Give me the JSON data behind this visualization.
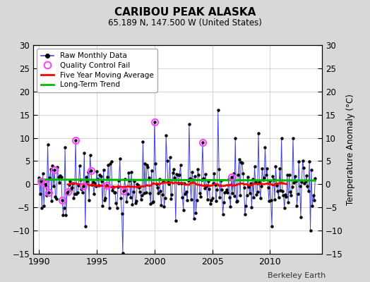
{
  "title": "CARIBOU PEAK ALASKA",
  "subtitle": "65.189 N, 147.500 W (United States)",
  "credit": "Berkeley Earth",
  "ylabel": "Temperature Anomaly (°C)",
  "xlim": [
    1989.5,
    2014.5
  ],
  "ylim": [
    -15,
    30
  ],
  "yticks": [
    -15,
    -10,
    -5,
    0,
    5,
    10,
    15,
    20,
    25,
    30
  ],
  "xticks": [
    1990,
    1995,
    2000,
    2005,
    2010
  ],
  "bg_color": "#d8d8d8",
  "plot_bg_color": "#ffffff",
  "raw_color": "#4444dd",
  "raw_marker_color": "#000000",
  "qc_color": "#ff44ff",
  "ma_color": "#ff0000",
  "trend_color": "#00bb00",
  "long_term_trend_value": 0.9,
  "long_term_trend_slope": -0.008
}
